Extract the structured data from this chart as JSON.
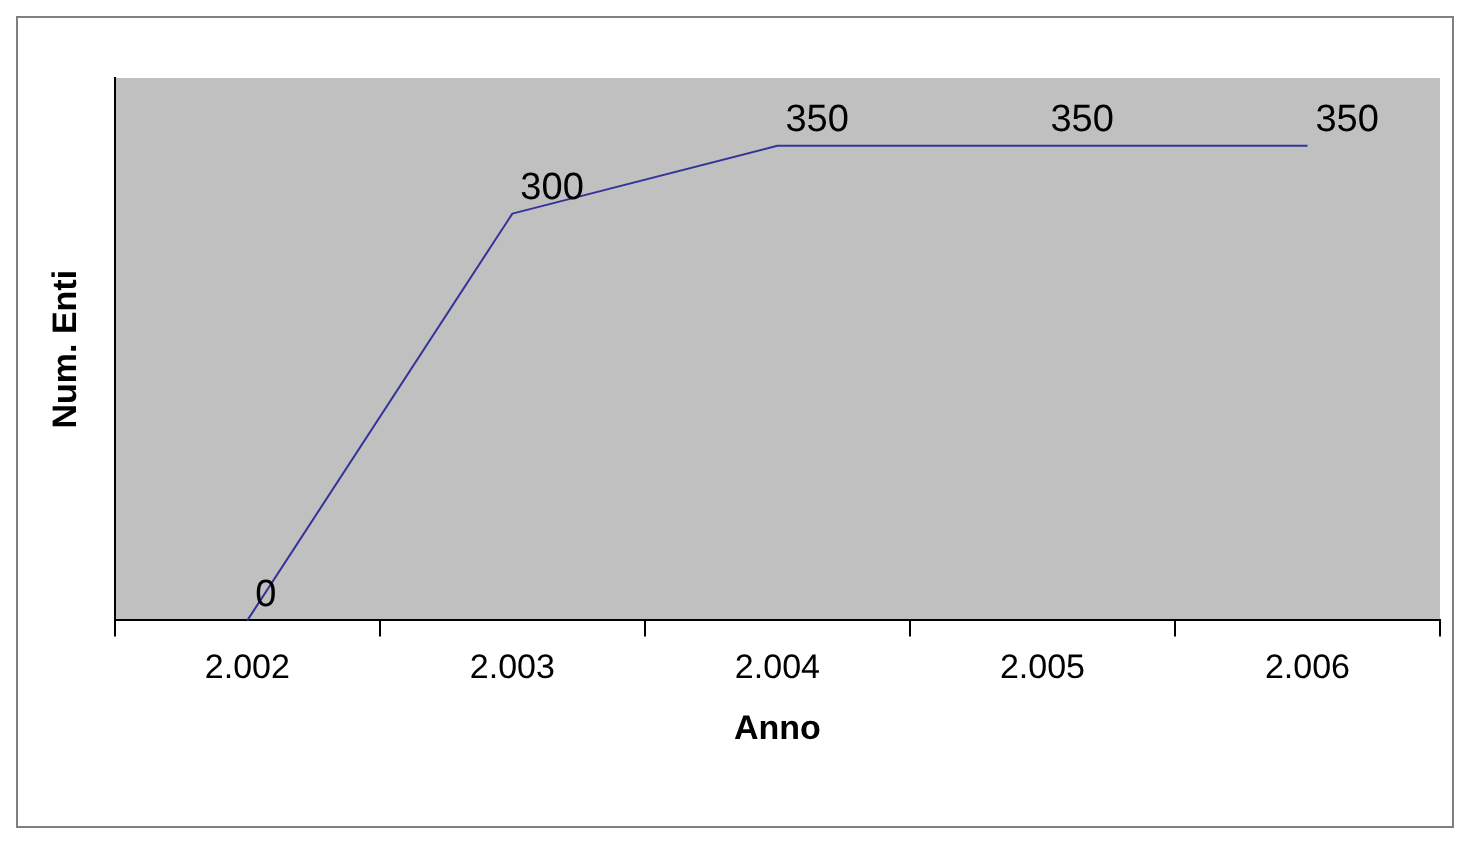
{
  "chart_data": {
    "type": "line",
    "xlabel": "Anno",
    "ylabel": "Num. Enti",
    "categories": [
      "2.002",
      "2.003",
      "2.004",
      "2.005",
      "2.006"
    ],
    "series": [
      {
        "color": "#333399",
        "values": [
          0,
          300,
          350,
          350,
          350
        ]
      }
    ],
    "data_labels": true,
    "tick_labels": "x",
    "grid": false,
    "legend": false,
    "marker": "none"
  }
}
